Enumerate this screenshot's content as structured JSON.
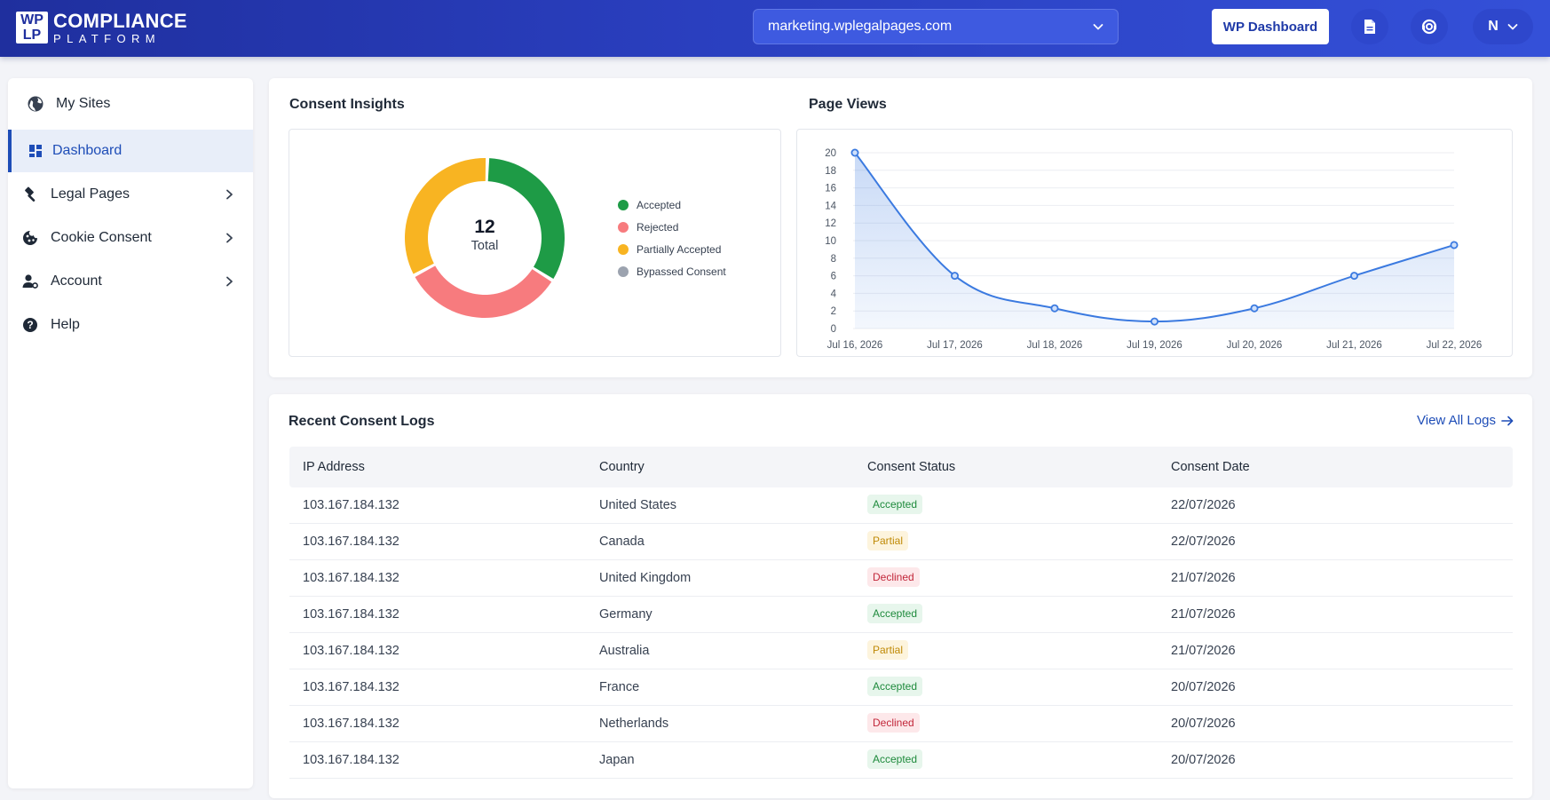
{
  "header": {
    "logo_mark": [
      "WP",
      "LP"
    ],
    "logo_line1": "COMPLIANCE",
    "logo_line2": "PLATFORM",
    "site_selector": "marketing.wplegalpages.com",
    "wp_dashboard_label": "WP Dashboard",
    "user_initial": "N",
    "icons": [
      "document-icon",
      "support-icon",
      "chevron-down-icon"
    ]
  },
  "sidebar": {
    "items": [
      {
        "label": "My Sites",
        "icon": "globe-icon",
        "active": false
      },
      {
        "label": "Dashboard",
        "icon": "grid-icon",
        "active": true
      },
      {
        "label": "Legal Pages",
        "icon": "gavel-icon",
        "active": false,
        "expandable": true
      },
      {
        "label": "Cookie Consent",
        "icon": "cookie-icon",
        "active": false,
        "expandable": true
      },
      {
        "label": "Account",
        "icon": "user-settings-icon",
        "active": false,
        "expandable": true
      },
      {
        "label": "Help",
        "icon": "help-icon",
        "active": false
      }
    ]
  },
  "consent_insights": {
    "title": "Consent Insights",
    "total_value": "12",
    "total_label": "Total",
    "legend": [
      {
        "label": "Accepted",
        "color": "#1e9b46"
      },
      {
        "label": "Rejected",
        "color": "#f77b7e"
      },
      {
        "label": "Partially Accepted",
        "color": "#f8b422"
      },
      {
        "label": "Bypassed Consent",
        "color": "#9ca3af"
      }
    ]
  },
  "page_views": {
    "title": "Page Views"
  },
  "chart_data": [
    {
      "type": "pie",
      "title": "Consent Insights",
      "donut": true,
      "center_text": [
        "12",
        "Total"
      ],
      "categories": [
        "Accepted",
        "Rejected",
        "Partially Accepted",
        "Bypassed Consent"
      ],
      "values": [
        4,
        4,
        4,
        0
      ],
      "colors": [
        "#1e9b46",
        "#f77b7e",
        "#f8b422",
        "#9ca3af"
      ],
      "legend": "right"
    },
    {
      "type": "area",
      "title": "Page Views",
      "x": [
        "Jul 16, 2026",
        "Jul 17, 2026",
        "Jul 18, 2026",
        "Jul 19, 2026",
        "Jul 20, 2026",
        "Jul 21, 2026",
        "Jul 22, 2026"
      ],
      "values": [
        20,
        6,
        2.3,
        0.8,
        2.3,
        6,
        9.5
      ],
      "ylim": [
        0,
        20
      ],
      "yticks": [
        0,
        2,
        4,
        6,
        8,
        10,
        12,
        14,
        16,
        18,
        20
      ],
      "grid": true,
      "color": "#3b7ae0"
    }
  ],
  "logs": {
    "title": "Recent Consent Logs",
    "view_all_label": "View All Logs",
    "columns": [
      "IP Address",
      "Country",
      "Consent Status",
      "Consent Date"
    ],
    "rows": [
      {
        "ip": "103.167.184.132",
        "country": "United States",
        "status": "Accepted",
        "date": "22/07/2026"
      },
      {
        "ip": "103.167.184.132",
        "country": "Canada",
        "status": "Partial",
        "date": "22/07/2026"
      },
      {
        "ip": "103.167.184.132",
        "country": "United Kingdom",
        "status": "Declined",
        "date": "21/07/2026"
      },
      {
        "ip": "103.167.184.132",
        "country": "Germany",
        "status": "Accepted",
        "date": "21/07/2026"
      },
      {
        "ip": "103.167.184.132",
        "country": "Australia",
        "status": "Partial",
        "date": "21/07/2026"
      },
      {
        "ip": "103.167.184.132",
        "country": "France",
        "status": "Accepted",
        "date": "20/07/2026"
      },
      {
        "ip": "103.167.184.132",
        "country": "Netherlands",
        "status": "Declined",
        "date": "20/07/2026"
      },
      {
        "ip": "103.167.184.132",
        "country": "Japan",
        "status": "Accepted",
        "date": "20/07/2026"
      }
    ]
  }
}
